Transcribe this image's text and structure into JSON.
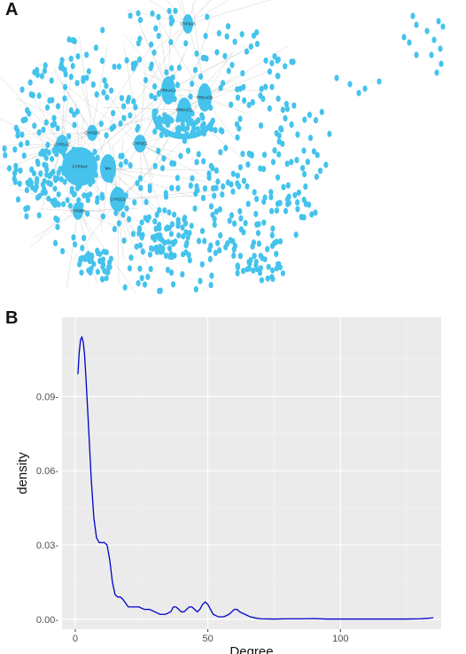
{
  "panels": {
    "a_label": "A",
    "b_label": "B"
  },
  "network": {
    "node_color": "#45c3ec",
    "edge_color": "#c8c8c8",
    "hub_labels": [
      "PRKACA",
      "PRKACB",
      "PRKACG",
      "CYP3A4",
      "MA",
      "CYP2C9",
      "CYP1A2",
      "CYP2E1",
      "CYP2B6",
      "CYP2D6",
      "CYP3A5"
    ]
  },
  "chart_data": {
    "type": "line",
    "title": "",
    "xlabel": "Degree",
    "ylabel": "density",
    "xlim": [
      -5,
      138
    ],
    "ylim": [
      -0.004,
      0.122
    ],
    "xticks": [
      0,
      50,
      100
    ],
    "yticks": [
      0.0,
      0.03,
      0.06,
      0.09
    ],
    "ytick_labels": [
      "0.00-",
      "0.03-",
      "0.06-",
      "0.09-"
    ],
    "xtick_labels": [
      "0",
      "50",
      "100"
    ],
    "grid": true,
    "panel_background": "#ebebeb",
    "line_color": "#0000cc",
    "series": [
      {
        "x": [
          1,
          1.5,
          2,
          2.5,
          3,
          3.5,
          4,
          5,
          6,
          7,
          8,
          9,
          10,
          11,
          12,
          13,
          14,
          15,
          16,
          17,
          18,
          20,
          22,
          24,
          26,
          28,
          30,
          32,
          34,
          36,
          37,
          38,
          39,
          40,
          41,
          42,
          43,
          44,
          45,
          46,
          47,
          48,
          49,
          50,
          51,
          52,
          54,
          56,
          58,
          60,
          61,
          62,
          64,
          66,
          68,
          70,
          75,
          80,
          85,
          90,
          95,
          100,
          105,
          110,
          115,
          120,
          125,
          130,
          133,
          135
        ],
        "y": [
          0.099,
          0.108,
          0.113,
          0.114,
          0.112,
          0.107,
          0.098,
          0.078,
          0.057,
          0.041,
          0.033,
          0.031,
          0.031,
          0.031,
          0.03,
          0.024,
          0.015,
          0.01,
          0.009,
          0.009,
          0.008,
          0.005,
          0.005,
          0.005,
          0.004,
          0.004,
          0.003,
          0.002,
          0.002,
          0.003,
          0.005,
          0.005,
          0.004,
          0.003,
          0.003,
          0.004,
          0.005,
          0.005,
          0.004,
          0.003,
          0.004,
          0.006,
          0.007,
          0.006,
          0.004,
          0.002,
          0.001,
          0.001,
          0.002,
          0.004,
          0.004,
          0.003,
          0.002,
          0.001,
          0.0005,
          0.0002,
          0.0001,
          0.0002,
          0.0002,
          0.0003,
          0.0001,
          0.0001,
          0.0001,
          0.0001,
          0.0001,
          0.0001,
          0.0001,
          0.0002,
          0.0004,
          0.0006
        ]
      }
    ]
  }
}
